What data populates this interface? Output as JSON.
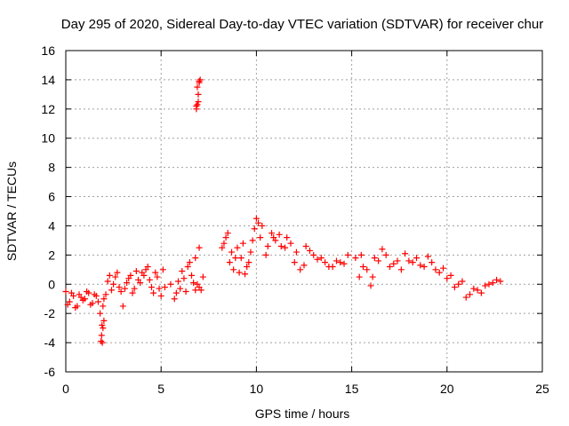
{
  "chart_data": {
    "type": "scatter",
    "title": "Day 295 of 2020, Sidereal Day-to-day VTEC variation (SDTVAR) for receiver chur",
    "xlabel": "GPS time / hours",
    "ylabel": "SDTVAR / TECUs",
    "xlim": [
      0,
      25
    ],
    "ylim": [
      -6,
      16
    ],
    "xticks": [
      0,
      5,
      10,
      15,
      20,
      25
    ],
    "xtick_labels": [
      "0",
      "5",
      "10",
      "15",
      "20",
      "25"
    ],
    "yticks": [
      -6,
      -4,
      -2,
      0,
      2,
      4,
      6,
      8,
      10,
      12,
      14,
      16
    ],
    "ytick_labels": [
      "-6",
      "-4",
      "-2",
      "0",
      "2",
      "4",
      "6",
      "8",
      "10",
      "12",
      "14",
      "16"
    ],
    "grid": true,
    "marker": "+",
    "color": "#ff0000",
    "series": [
      {
        "name": "SDTVAR",
        "x": [
          0.0,
          0.2,
          0.4,
          0.6,
          0.8,
          1.0,
          1.2,
          1.4,
          1.6,
          1.8,
          1.85,
          1.9,
          2.0,
          2.2,
          2.4,
          2.6,
          2.8,
          3.0,
          3.2,
          3.4,
          3.6,
          3.8,
          4.0,
          4.2,
          4.4,
          4.6,
          4.8,
          5.0,
          5.2,
          5.5,
          5.8,
          6.0,
          6.2,
          6.4,
          6.6,
          6.8,
          6.9,
          7.0,
          7.1,
          7.2,
          8.2,
          8.4,
          8.6,
          8.8,
          9.0,
          9.2,
          9.4,
          9.6,
          9.8,
          10.0,
          10.2,
          10.5,
          10.8,
          11.0,
          11.3,
          11.6,
          12.0,
          12.3,
          12.6,
          13.0,
          13.4,
          13.8,
          14.2,
          14.6,
          15.2,
          15.6,
          16.0,
          16.4,
          16.8,
          17.2,
          17.6,
          18.0,
          18.4,
          18.8,
          19.2,
          19.6,
          20.0,
          20.4,
          20.8,
          21.2,
          21.6,
          22.0,
          22.4,
          22.8,
          0.1,
          0.3,
          0.5,
          0.7,
          0.9,
          1.1,
          1.3,
          1.5,
          1.7,
          1.95,
          2.1,
          2.3,
          2.5,
          2.7,
          2.9,
          3.1,
          3.3,
          3.5,
          3.7,
          3.9,
          4.1,
          4.3,
          4.5,
          4.7,
          4.9,
          5.1,
          5.7,
          5.9,
          6.1,
          6.3,
          6.5,
          6.7,
          7.0,
          8.3,
          8.5,
          8.7,
          8.9,
          9.1,
          9.3,
          9.5,
          9.7,
          9.9,
          10.1,
          10.3,
          10.6,
          10.9,
          11.2,
          11.5,
          11.8,
          12.1,
          12.5,
          12.8,
          13.2,
          13.6,
          14.0,
          14.4,
          14.8,
          15.4,
          15.8,
          16.2,
          16.6,
          17.0,
          17.4,
          17.8,
          18.2,
          18.6,
          19.0,
          19.4,
          19.8,
          20.2,
          20.6,
          21.0,
          21.4,
          21.8,
          22.2,
          22.6,
          6.85,
          6.9,
          6.95,
          7.0,
          7.05,
          6.85,
          6.9,
          6.95,
          7.0,
          1.88,
          1.92,
          1.95,
          2.0,
          6.8,
          15.5,
          16.1
        ],
        "y": [
          -0.5,
          -1.2,
          -0.8,
          -1.5,
          -0.9,
          -1.0,
          -0.6,
          -1.3,
          -0.8,
          -2.0,
          -3.9,
          -2.8,
          -1.0,
          0.2,
          -0.4,
          0.5,
          -0.2,
          -1.5,
          0.1,
          0.6,
          -0.3,
          0.3,
          0.8,
          1.0,
          0.3,
          -0.6,
          0.5,
          -0.8,
          -0.2,
          0.0,
          -0.6,
          -0.3,
          0.4,
          1.2,
          0.6,
          -0.4,
          0.0,
          -0.2,
          -0.4,
          0.5,
          2.5,
          3.2,
          1.5,
          1.0,
          2.5,
          1.8,
          0.7,
          1.5,
          3.0,
          4.5,
          3.2,
          2.0,
          3.5,
          3.0,
          2.6,
          3.2,
          1.5,
          1.0,
          2.6,
          2.0,
          1.8,
          1.2,
          1.6,
          1.4,
          1.8,
          1.2,
          -0.1,
          1.6,
          2.0,
          1.4,
          1.0,
          1.6,
          1.8,
          1.2,
          1.5,
          0.8,
          0.4,
          -0.2,
          0.2,
          -0.7,
          -0.4,
          -0.1,
          0.1,
          0.2,
          -1.4,
          -0.6,
          -1.6,
          -0.7,
          -1.1,
          -0.5,
          -1.4,
          -0.7,
          -1.2,
          -1.5,
          -0.7,
          0.6,
          0.0,
          0.8,
          -0.5,
          -0.3,
          0.4,
          -0.6,
          0.9,
          0.1,
          0.6,
          1.2,
          -0.2,
          0.8,
          -0.3,
          1.0,
          -1.0,
          0.2,
          0.9,
          -0.5,
          1.5,
          0.1,
          2.5,
          2.8,
          3.5,
          2.2,
          1.8,
          0.8,
          2.8,
          1.2,
          2.2,
          3.8,
          4.2,
          4.0,
          2.6,
          3.2,
          3.4,
          2.5,
          2.8,
          2.2,
          1.3,
          2.3,
          1.7,
          1.5,
          1.2,
          1.5,
          2.0,
          0.5,
          1.0,
          1.8,
          2.4,
          1.2,
          1.6,
          2.1,
          1.5,
          1.3,
          1.9,
          1.0,
          1.1,
          0.6,
          0.0,
          -0.9,
          -0.3,
          -0.6,
          0.0,
          0.3,
          12.0,
          12.3,
          13.0,
          13.8,
          14.0,
          12.2,
          13.5,
          12.5,
          13.9,
          -3.5,
          -4.0,
          -3.0,
          -2.5,
          1.8,
          2.0,
          0.5
        ]
      }
    ]
  }
}
